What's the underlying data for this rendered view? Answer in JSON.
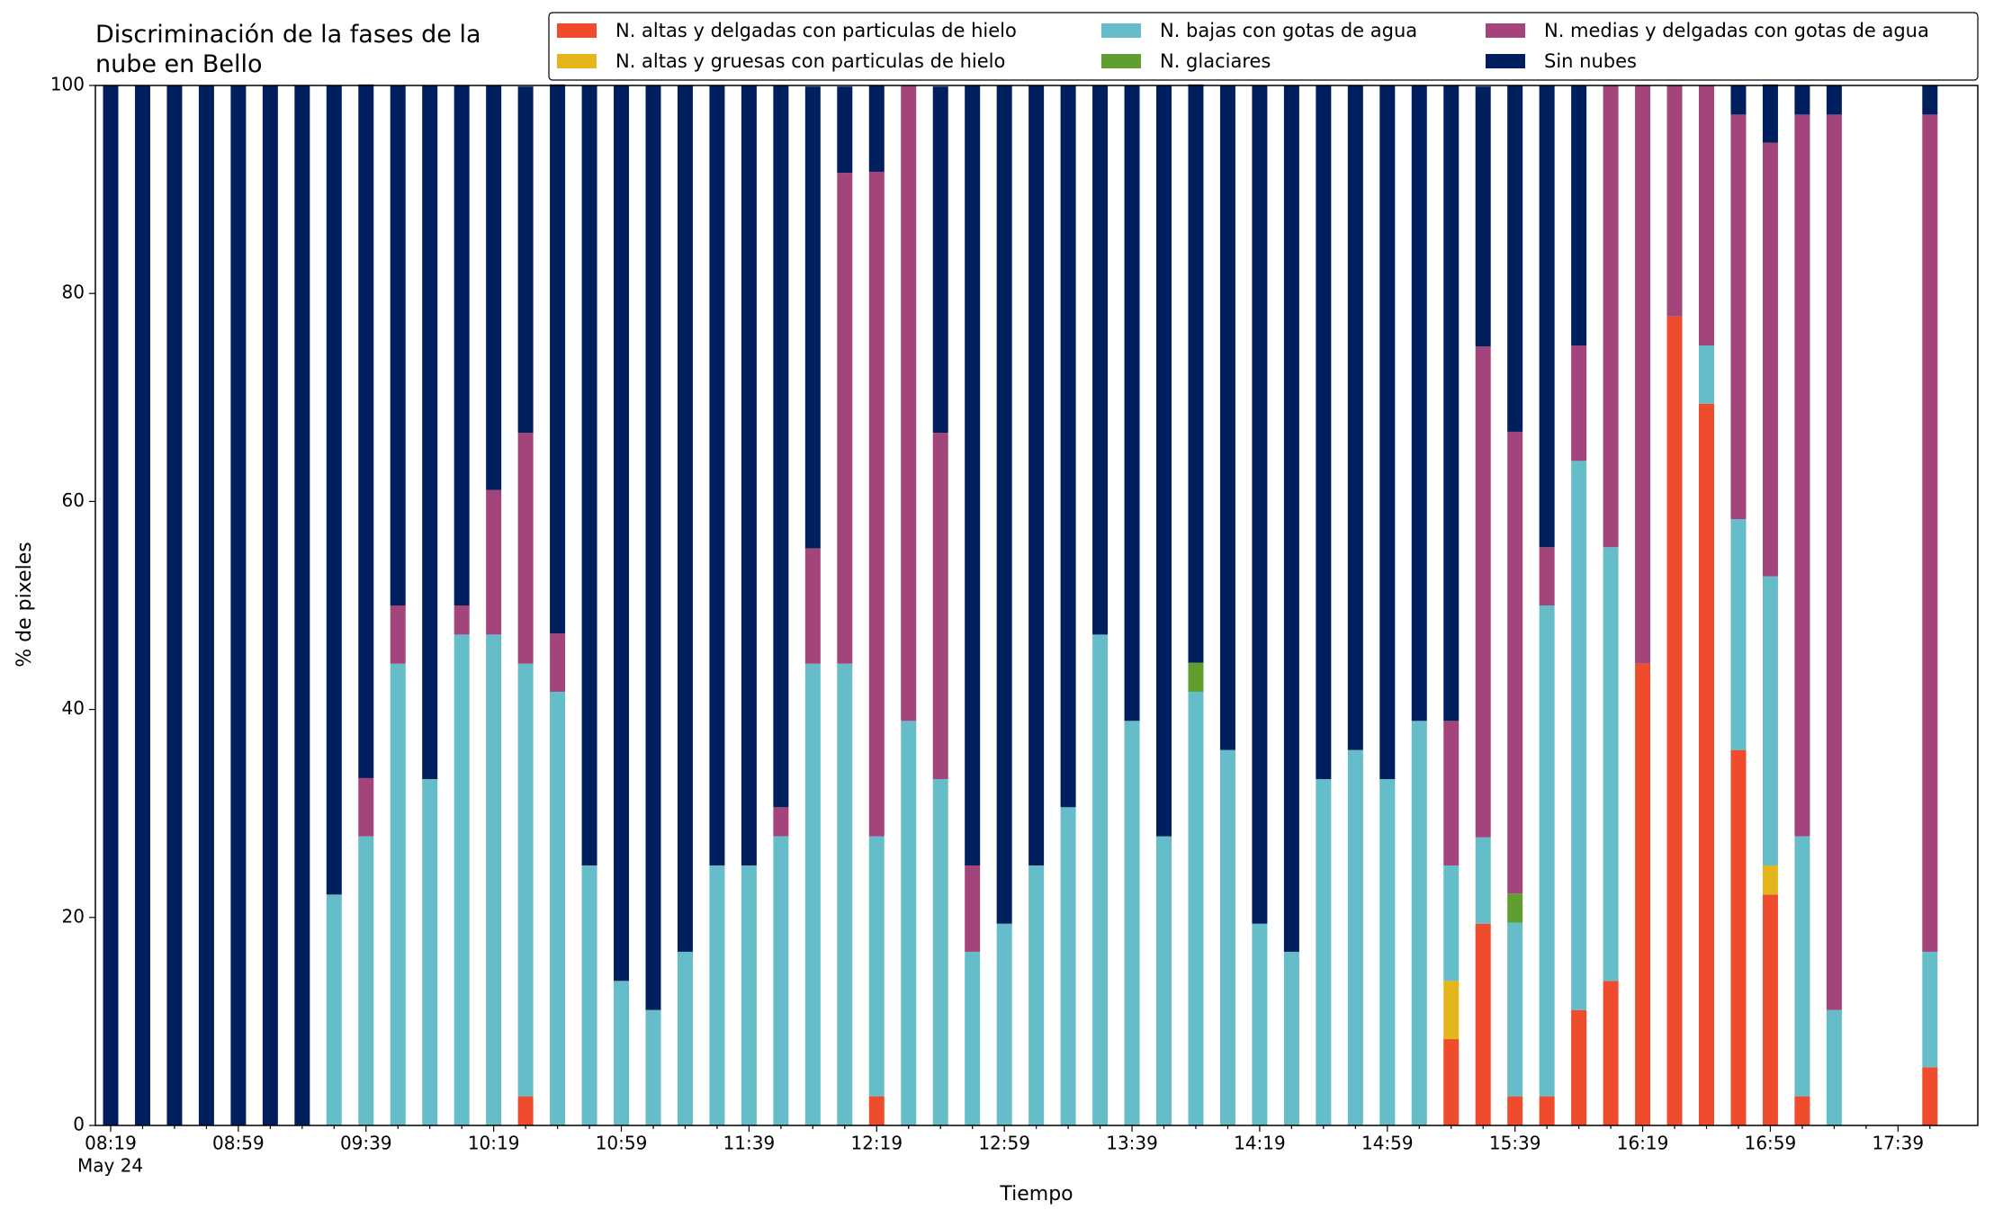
{
  "chart_data": {
    "type": "stacked_bar",
    "title": "Discriminación de la fases de la nube en Bello",
    "xlabel": "Tiempo",
    "ylabel": "% de pixeles",
    "x_date_label": "May 24",
    "categories": [
      "08:19",
      null,
      null,
      null,
      "08:59",
      null,
      null,
      null,
      "09:39",
      null,
      null,
      null,
      "10:19",
      null,
      null,
      null,
      "10:59",
      null,
      null,
      null,
      "11:39",
      null,
      null,
      null,
      "12:19",
      null,
      null,
      null,
      "12:59",
      null,
      null,
      null,
      "13:39",
      null,
      null,
      null,
      "14:19",
      null,
      null,
      null,
      "14:59",
      null,
      null,
      null,
      "15:39",
      null,
      null,
      null,
      "16:19",
      null,
      null,
      null,
      "16:59",
      null,
      null,
      null,
      "17:39",
      null
    ],
    "ylim": [
      0,
      100
    ],
    "yticks": [
      0,
      20,
      40,
      60,
      80,
      100
    ],
    "legend_position": "top-right",
    "legend_columns": 3,
    "series": [
      {
        "name": "N. altas y delgadas con particulas de hielo",
        "color": "#ef4b2d",
        "values": [
          0,
          0,
          0,
          0,
          0,
          0,
          0,
          0,
          0,
          0,
          0,
          0,
          0,
          2.8,
          0,
          0,
          0,
          0,
          0,
          0,
          0,
          0,
          0,
          0,
          2.8,
          0,
          0,
          0,
          0,
          0,
          0,
          0,
          0,
          0,
          0,
          0,
          0,
          0,
          0,
          0,
          0,
          0,
          8.3,
          19.4,
          2.8,
          2.8,
          11.1,
          13.9,
          44.4,
          77.8,
          69.4,
          36.1,
          22.2,
          2.8,
          0,
          null,
          null,
          5.6
        ]
      },
      {
        "name": "N. altas y gruesas con particulas de hielo",
        "color": "#e5b61b",
        "values": [
          0,
          0,
          0,
          0,
          0,
          0,
          0,
          0,
          0,
          0,
          0,
          0,
          0,
          0,
          0,
          0,
          0,
          0,
          0,
          0,
          0,
          0,
          0,
          0,
          0,
          0,
          0,
          0,
          0,
          0,
          0,
          0,
          0,
          0,
          0,
          0,
          0,
          0,
          0,
          0,
          0,
          0,
          5.6,
          0,
          0,
          0,
          0,
          0,
          0,
          0,
          0,
          0,
          2.8,
          0,
          0,
          null,
          null,
          0
        ]
      },
      {
        "name": "N. bajas con gotas de agua",
        "color": "#66bdca",
        "values": [
          0,
          0,
          0,
          0,
          0,
          0,
          0,
          22.2,
          27.8,
          44.4,
          33.3,
          47.2,
          47.2,
          41.6,
          41.7,
          25,
          13.9,
          11.1,
          16.7,
          25,
          25,
          27.8,
          44.4,
          44.4,
          25,
          38.9,
          33.3,
          16.7,
          19.4,
          25,
          30.6,
          47.2,
          38.9,
          27.8,
          41.7,
          36.1,
          19.4,
          16.7,
          33.3,
          36.1,
          33.3,
          38.9,
          11.1,
          8.3,
          16.7,
          47.2,
          52.8,
          41.7,
          0,
          0,
          5.6,
          22.2,
          27.8,
          25,
          11.1,
          null,
          null,
          11.1
        ]
      },
      {
        "name": "N. glaciares",
        "color": "#5f9e2f",
        "values": [
          0,
          0,
          0,
          0,
          0,
          0,
          0,
          0,
          0,
          0,
          0,
          0,
          0,
          0,
          0,
          0,
          0,
          0,
          0,
          0,
          0,
          0,
          0,
          0,
          0,
          0,
          0,
          0,
          0,
          0,
          0,
          0,
          0,
          0,
          2.8,
          0,
          0,
          0,
          0,
          0,
          0,
          0,
          0,
          0,
          2.8,
          0,
          0,
          0,
          0,
          0,
          0,
          0,
          0,
          0,
          0,
          null,
          null,
          0
        ]
      },
      {
        "name": "N. medias y delgadas con gotas de agua",
        "color": "#a3457a",
        "values": [
          0,
          0,
          0,
          0,
          0,
          0,
          0,
          0,
          5.6,
          5.6,
          0,
          2.8,
          13.9,
          22.2,
          5.6,
          0,
          0,
          0,
          0,
          0,
          0,
          2.8,
          11.1,
          47.2,
          63.9,
          61.1,
          33.3,
          8.3,
          0,
          0,
          0,
          0,
          0,
          0,
          0,
          0,
          0,
          0,
          0,
          0,
          0,
          0,
          13.9,
          47.2,
          44.4,
          5.6,
          11.1,
          44.4,
          55.6,
          22.2,
          25,
          38.9,
          41.7,
          69.4,
          86.1,
          null,
          null,
          80.5
        ]
      },
      {
        "name": "Sin nubes",
        "color": "#001f5f",
        "values": [
          100,
          100,
          100,
          100,
          100,
          100,
          100,
          77.8,
          66.7,
          50,
          66.7,
          50,
          38.9,
          33.3,
          52.8,
          75,
          86.1,
          88.9,
          83.3,
          75,
          75,
          69.4,
          44.4,
          8.3,
          8.3,
          0,
          33.3,
          75,
          80.6,
          75,
          69.4,
          52.8,
          61.1,
          72.2,
          55.6,
          63.9,
          80.6,
          83.3,
          66.7,
          63.9,
          66.7,
          61.1,
          61.1,
          25,
          33.3,
          44.4,
          25,
          0,
          0,
          0,
          0,
          2.8,
          5.6,
          2.8,
          2.8,
          null,
          null,
          2.8
        ]
      }
    ]
  }
}
